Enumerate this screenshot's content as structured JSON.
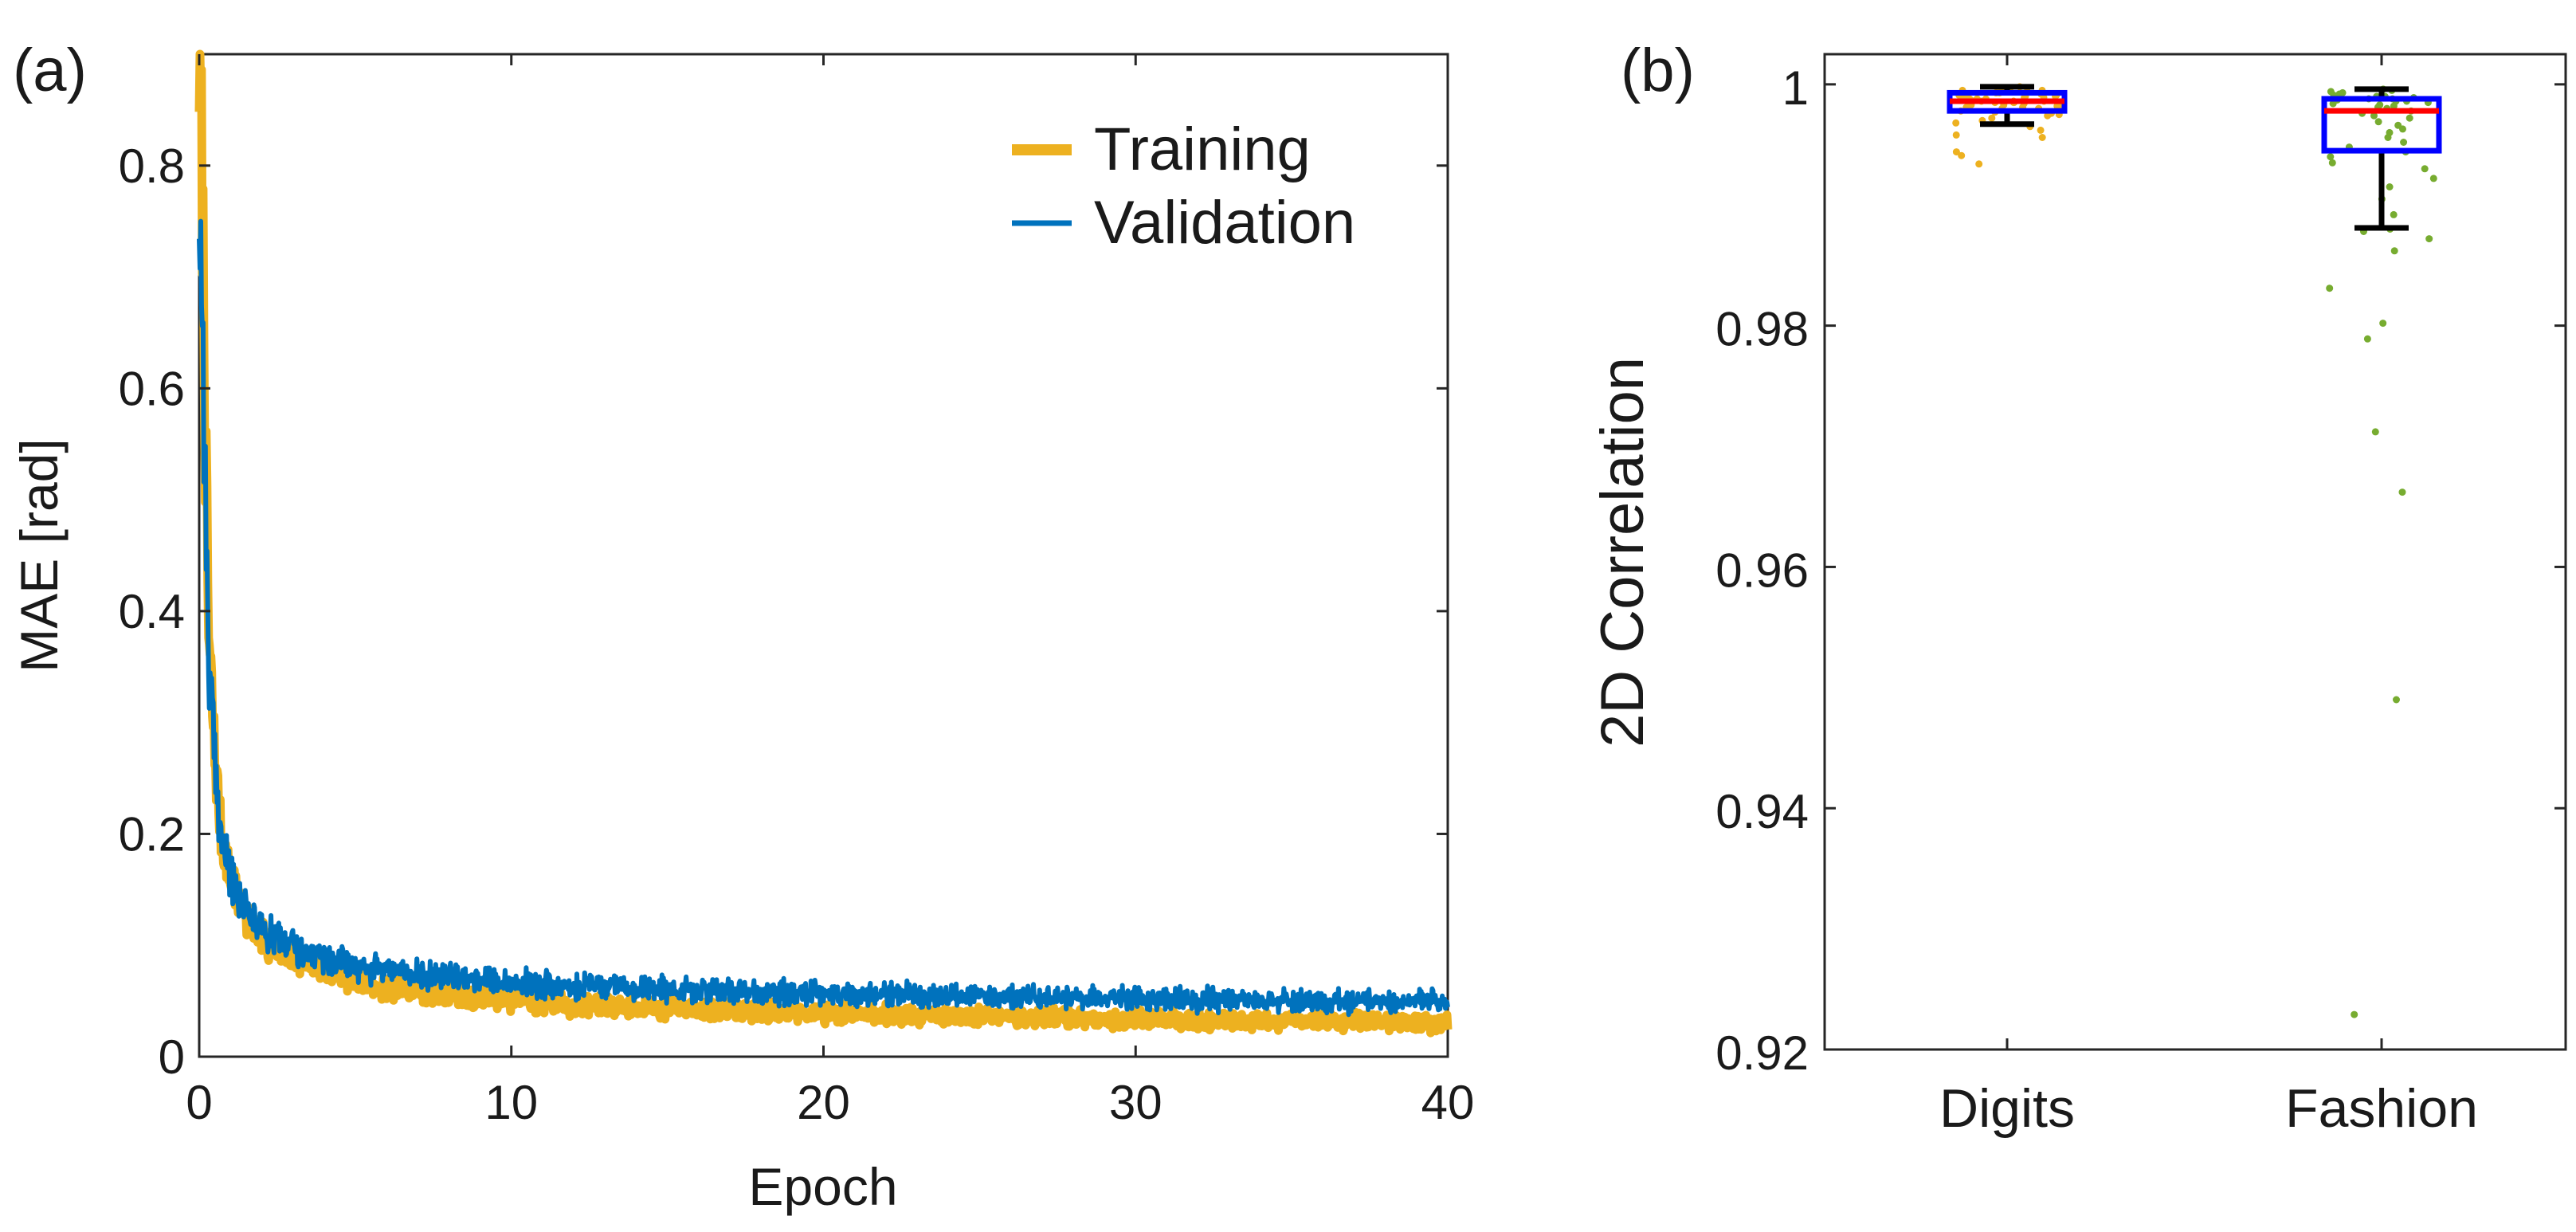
{
  "figure": {
    "panel_a_label": "(a)",
    "panel_b_label": "(b)"
  },
  "colors": {
    "training": "#edb120",
    "validation": "#0072bd",
    "box": "#0000ff",
    "median": "#ff0000",
    "whisker": "#000000",
    "fashion_points": "#77ac30",
    "digits_points": "#edb120"
  },
  "chart_data": [
    {
      "type": "line",
      "title": "",
      "xlabel": "Epoch",
      "ylabel": "MAE [rad]",
      "xlim": [
        0,
        40
      ],
      "ylim": [
        0,
        0.9
      ],
      "xticks": [
        "0",
        "10",
        "20",
        "30",
        "40"
      ],
      "yticks": [
        "0",
        "0.2",
        "0.4",
        "0.6",
        "0.8"
      ],
      "legend_position": "top-right",
      "series": [
        {
          "name": "Training",
          "x": [
            0,
            0.1,
            0.2,
            0.3,
            0.5,
            0.7,
            1,
            1.5,
            2,
            3,
            4,
            5,
            6,
            8,
            10,
            12,
            15,
            18,
            20,
            25,
            30,
            35,
            40
          ],
          "y": [
            0.9,
            0.78,
            0.55,
            0.38,
            0.27,
            0.2,
            0.16,
            0.125,
            0.105,
            0.09,
            0.078,
            0.068,
            0.062,
            0.056,
            0.051,
            0.047,
            0.044,
            0.041,
            0.039,
            0.036,
            0.034,
            0.032,
            0.03
          ]
        },
        {
          "name": "Validation",
          "x": [
            0,
            0.1,
            0.2,
            0.3,
            0.5,
            0.7,
            1,
            1.5,
            2,
            3,
            4,
            5,
            6,
            8,
            10,
            12,
            15,
            18,
            20,
            25,
            30,
            35,
            40
          ],
          "y": [
            0.78,
            0.68,
            0.5,
            0.36,
            0.26,
            0.2,
            0.16,
            0.13,
            0.115,
            0.1,
            0.09,
            0.082,
            0.078,
            0.072,
            0.067,
            0.063,
            0.06,
            0.058,
            0.057,
            0.054,
            0.052,
            0.05,
            0.049
          ]
        }
      ]
    },
    {
      "type": "box",
      "title": "",
      "xlabel": "",
      "ylabel": "2D Correlation",
      "ylim": [
        0.92,
        1.0025
      ],
      "yticks": [
        "0.92",
        "0.94",
        "0.96",
        "0.98",
        "1"
      ],
      "categories": [
        "Digits",
        "Fashion"
      ],
      "boxes": [
        {
          "category": "Digits",
          "whisker_low": 0.9967,
          "q1": 0.9978,
          "median": 0.9986,
          "q3": 0.9993,
          "whisker_high": 0.9998,
          "points": [
            0.9934,
            0.9941,
            0.9944,
            0.9956,
            0.9958,
            0.9962,
            0.9965,
            0.9968,
            0.997,
            0.9972,
            0.9974,
            0.9975,
            0.9976,
            0.9977,
            0.9978,
            0.9979,
            0.998,
            0.998,
            0.9981,
            0.9981,
            0.9982,
            0.9982,
            0.9983,
            0.9983,
            0.9984,
            0.9984,
            0.9985,
            0.9985,
            0.9985,
            0.9986,
            0.9986,
            0.9986,
            0.9987,
            0.9987,
            0.9988,
            0.9988,
            0.9988,
            0.9989,
            0.9989,
            0.999,
            0.999,
            0.999,
            0.9991,
            0.9991,
            0.9992,
            0.9992,
            0.9993,
            0.9993,
            0.9994,
            0.9994,
            0.9995,
            0.9995,
            0.9996,
            0.9997,
            0.9998
          ]
        },
        {
          "category": "Fashion",
          "whisker_low": 0.9881,
          "q1": 0.9945,
          "median": 0.9978,
          "q3": 0.9988,
          "whisker_high": 0.9996,
          "points": [
            0.9229,
            0.949,
            0.9662,
            0.9712,
            0.9789,
            0.9802,
            0.9831,
            0.9862,
            0.9872,
            0.9878,
            0.988,
            0.9892,
            0.9905,
            0.9915,
            0.9922,
            0.993,
            0.9935,
            0.994,
            0.9944,
            0.9948,
            0.9952,
            0.9956,
            0.996,
            0.9963,
            0.9966,
            0.9969,
            0.9972,
            0.9974,
            0.9976,
            0.9978,
            0.998,
            0.9981,
            0.9982,
            0.9983,
            0.9984,
            0.9985,
            0.9986,
            0.9986,
            0.9987,
            0.9988,
            0.9988,
            0.9989,
            0.999,
            0.999,
            0.9991,
            0.9992,
            0.9993,
            0.9994,
            0.9995,
            0.9996
          ]
        }
      ]
    }
  ]
}
